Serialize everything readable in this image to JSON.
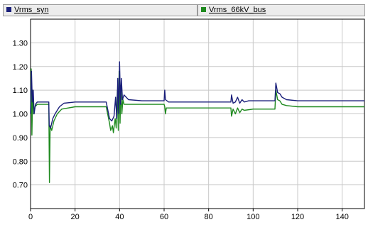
{
  "legend": [
    {
      "label": "Vrms_syn",
      "color": "#1a1f7a"
    },
    {
      "label": "Vrms_66kV_bus",
      "color": "#1f8a1f"
    }
  ],
  "chart_data": {
    "type": "line",
    "title": "",
    "xlabel": "",
    "ylabel": "",
    "xlim": [
      0,
      150
    ],
    "ylim": [
      0.6,
      1.4
    ],
    "grid": true,
    "legend_position": "top",
    "x_ticks": [
      "0",
      "20",
      "40",
      "60",
      "80",
      "100",
      "120",
      "140"
    ],
    "y_ticks": [
      "0.70",
      "0.80",
      "0.90",
      "1.00",
      "1.10",
      "1.20",
      "1.30"
    ],
    "series": [
      {
        "name": "Vrms_syn",
        "color": "#1a1f7a",
        "points": [
          [
            0,
            1.0
          ],
          [
            0.4,
            1.18
          ],
          [
            0.8,
            1.05
          ],
          [
            1.2,
            1.1
          ],
          [
            1.6,
            1.0
          ],
          [
            2.2,
            1.04
          ],
          [
            3,
            1.05
          ],
          [
            5,
            1.05
          ],
          [
            8.2,
            1.05
          ],
          [
            8.4,
            0.95
          ],
          [
            9,
            0.94
          ],
          [
            10,
            0.98
          ],
          [
            11,
            1.0
          ],
          [
            13,
            1.03
          ],
          [
            15,
            1.045
          ],
          [
            20,
            1.05
          ],
          [
            30,
            1.05
          ],
          [
            34,
            1.05
          ],
          [
            35.5,
            0.98
          ],
          [
            36.5,
            0.97
          ],
          [
            37.5,
            0.99
          ],
          [
            38.2,
            1.07
          ],
          [
            38.7,
            0.98
          ],
          [
            39.2,
            1.15
          ],
          [
            39.6,
            1.0
          ],
          [
            40,
            1.22
          ],
          [
            40.4,
            1.04
          ],
          [
            40.8,
            1.15
          ],
          [
            41.3,
            1.06
          ],
          [
            42,
            1.08
          ],
          [
            44,
            1.06
          ],
          [
            50,
            1.055
          ],
          [
            60,
            1.055
          ],
          [
            60.3,
            1.1
          ],
          [
            60.6,
            1.06
          ],
          [
            62,
            1.05
          ],
          [
            70,
            1.05
          ],
          [
            90,
            1.05
          ],
          [
            90.3,
            1.08
          ],
          [
            91,
            1.045
          ],
          [
            92,
            1.05
          ],
          [
            93,
            1.07
          ],
          [
            94,
            1.045
          ],
          [
            95,
            1.06
          ],
          [
            96,
            1.05
          ],
          [
            98,
            1.055
          ],
          [
            109.8,
            1.055
          ],
          [
            110.2,
            1.13
          ],
          [
            111,
            1.09
          ],
          [
            112,
            1.085
          ],
          [
            113,
            1.07
          ],
          [
            115,
            1.06
          ],
          [
            120,
            1.055
          ],
          [
            150,
            1.055
          ]
        ]
      },
      {
        "name": "Vrms_66kV_bus",
        "color": "#1f8a1f",
        "points": [
          [
            0,
            1.0
          ],
          [
            0.3,
            1.19
          ],
          [
            0.6,
            0.91
          ],
          [
            1,
            1.1
          ],
          [
            1.4,
            1.0
          ],
          [
            2,
            1.03
          ],
          [
            3,
            1.04
          ],
          [
            5,
            1.04
          ],
          [
            8.2,
            1.04
          ],
          [
            8.5,
            0.71
          ],
          [
            8.8,
            0.95
          ],
          [
            9.5,
            0.93
          ],
          [
            10.5,
            0.97
          ],
          [
            12,
            1.0
          ],
          [
            14,
            1.02
          ],
          [
            20,
            1.03
          ],
          [
            30,
            1.03
          ],
          [
            34,
            1.03
          ],
          [
            35.5,
            0.96
          ],
          [
            36,
            0.93
          ],
          [
            36.8,
            0.95
          ],
          [
            37.2,
            0.92
          ],
          [
            38,
            0.98
          ],
          [
            38.5,
            0.94
          ],
          [
            39,
            1.1
          ],
          [
            39.4,
            0.93
          ],
          [
            39.8,
            1.18
          ],
          [
            40.2,
            0.96
          ],
          [
            40.6,
            1.12
          ],
          [
            41,
            1.0
          ],
          [
            41.5,
            1.06
          ],
          [
            42,
            1.04
          ],
          [
            44,
            1.04
          ],
          [
            50,
            1.04
          ],
          [
            60,
            1.04
          ],
          [
            60.3,
            1.03
          ],
          [
            60.6,
            1.0
          ],
          [
            61,
            1.025
          ],
          [
            70,
            1.025
          ],
          [
            90,
            1.025
          ],
          [
            90.3,
            0.99
          ],
          [
            91,
            1.02
          ],
          [
            92,
            1.0
          ],
          [
            93,
            1.025
          ],
          [
            94,
            1.005
          ],
          [
            95,
            1.02
          ],
          [
            96,
            1.015
          ],
          [
            100,
            1.02
          ],
          [
            109.8,
            1.02
          ],
          [
            110.2,
            1.1
          ],
          [
            111,
            1.06
          ],
          [
            112,
            1.055
          ],
          [
            113,
            1.04
          ],
          [
            115,
            1.035
          ],
          [
            120,
            1.03
          ],
          [
            150,
            1.03
          ]
        ]
      }
    ]
  }
}
